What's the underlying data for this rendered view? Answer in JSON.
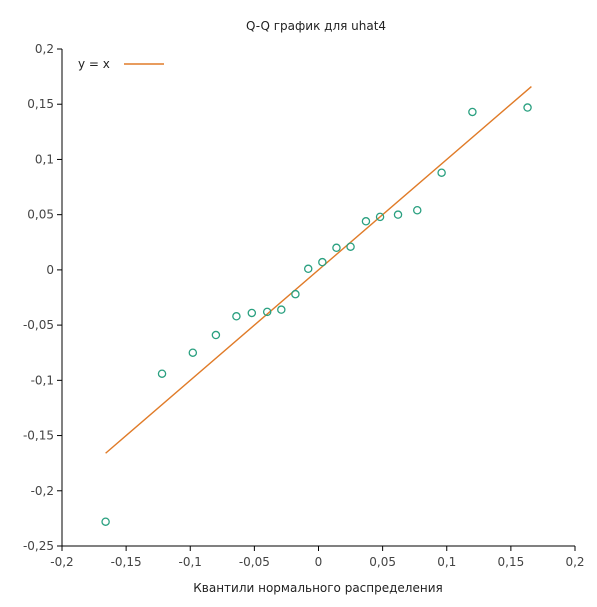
{
  "chart_data": {
    "type": "scatter",
    "title": "Q-Q график для uhat4",
    "xlabel": "Квантили нормального распределения",
    "ylabel": "",
    "xlim": [
      -0.2,
      0.2
    ],
    "ylim": [
      -0.25,
      0.2
    ],
    "x_ticks": [
      -0.2,
      -0.15,
      -0.1,
      -0.05,
      0,
      0.05,
      0.1,
      0.15,
      0.2
    ],
    "y_ticks": [
      -0.25,
      -0.2,
      -0.15,
      -0.1,
      -0.05,
      0,
      0.05,
      0.1,
      0.15,
      0.2
    ],
    "x_tick_labels": [
      "-0,2",
      "-0,15",
      "-0,1",
      "-0,05",
      "0",
      "0,05",
      "0,1",
      "0,15",
      "0,2"
    ],
    "y_tick_labels": [
      "-0,25",
      "-0,2",
      "-0,15",
      "-0,1",
      "-0,05",
      "0",
      "0,05",
      "0,1",
      "0,15",
      "0,2"
    ],
    "grid": false,
    "legend": {
      "position": "top-left",
      "entries": [
        "y = x"
      ]
    },
    "reference_line": {
      "name": "y = x",
      "x": [
        -0.166,
        0.166
      ],
      "y": [
        -0.166,
        0.166
      ],
      "color": "#e07b28"
    },
    "series": [
      {
        "name": "",
        "color": "#2aa080",
        "points": [
          [
            -0.166,
            -0.228
          ],
          [
            -0.122,
            -0.094
          ],
          [
            -0.098,
            -0.075
          ],
          [
            -0.08,
            -0.059
          ],
          [
            -0.064,
            -0.042
          ],
          [
            -0.052,
            -0.039
          ],
          [
            -0.04,
            -0.038
          ],
          [
            -0.029,
            -0.036
          ],
          [
            -0.018,
            -0.022
          ],
          [
            -0.008,
            0.001
          ],
          [
            0.003,
            0.007
          ],
          [
            0.014,
            0.02
          ],
          [
            0.025,
            0.021
          ],
          [
            0.037,
            0.044
          ],
          [
            0.048,
            0.048
          ],
          [
            0.062,
            0.05
          ],
          [
            0.077,
            0.054
          ],
          [
            0.096,
            0.088
          ],
          [
            0.12,
            0.143
          ],
          [
            0.163,
            0.147
          ]
        ]
      }
    ]
  }
}
